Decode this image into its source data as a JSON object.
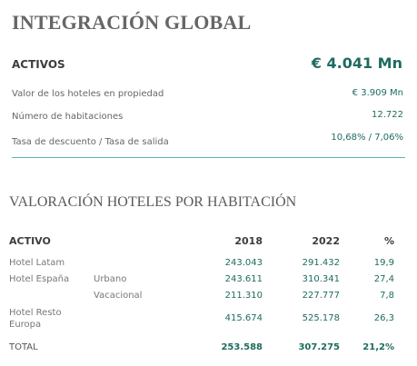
{
  "summary": {
    "title": "INTEGRACIÓN GLOBAL",
    "activos_label": "ACTIVOS",
    "activos_value": "€ 4.041 Mn",
    "rows": [
      {
        "label": "Valor de los hoteles en propiedad",
        "value": "€ 3.909 Mn"
      },
      {
        "label": "Número de habitaciones",
        "value": "12.722"
      },
      {
        "label": "Tasa de descuento / Tasa de salida",
        "value": "10,68% / 7,06%"
      }
    ]
  },
  "valuation": {
    "title": "VALORACIÓN HOTELES POR HABITACIÓN",
    "headers": {
      "asset": "ACTIVO",
      "y2018": "2018",
      "y2022": "2022",
      "pct": "%"
    },
    "rows": [
      {
        "label": "Hotel Latam",
        "sub": "",
        "y2018": "243.043",
        "y2022": "291.432",
        "pct": "19,9"
      },
      {
        "label": "Hotel España",
        "sub": "Urbano",
        "y2018": "243.611",
        "y2022": "310.341",
        "pct": "27,4"
      },
      {
        "label": "",
        "sub": "Vacacional",
        "y2018": "211.310",
        "y2022": "227.777",
        "pct": "7,8"
      },
      {
        "label": "Hotel Resto Europa",
        "sub": "",
        "y2018": "415.674",
        "y2022": "525.178",
        "pct": "26,3"
      }
    ],
    "total": {
      "label": "TOTAL",
      "y2018": "253.588",
      "y2022": "307.275",
      "pct": "21,2%"
    }
  },
  "colors": {
    "accent": "#1e6b5f",
    "divider": "#5fb7ab"
  }
}
